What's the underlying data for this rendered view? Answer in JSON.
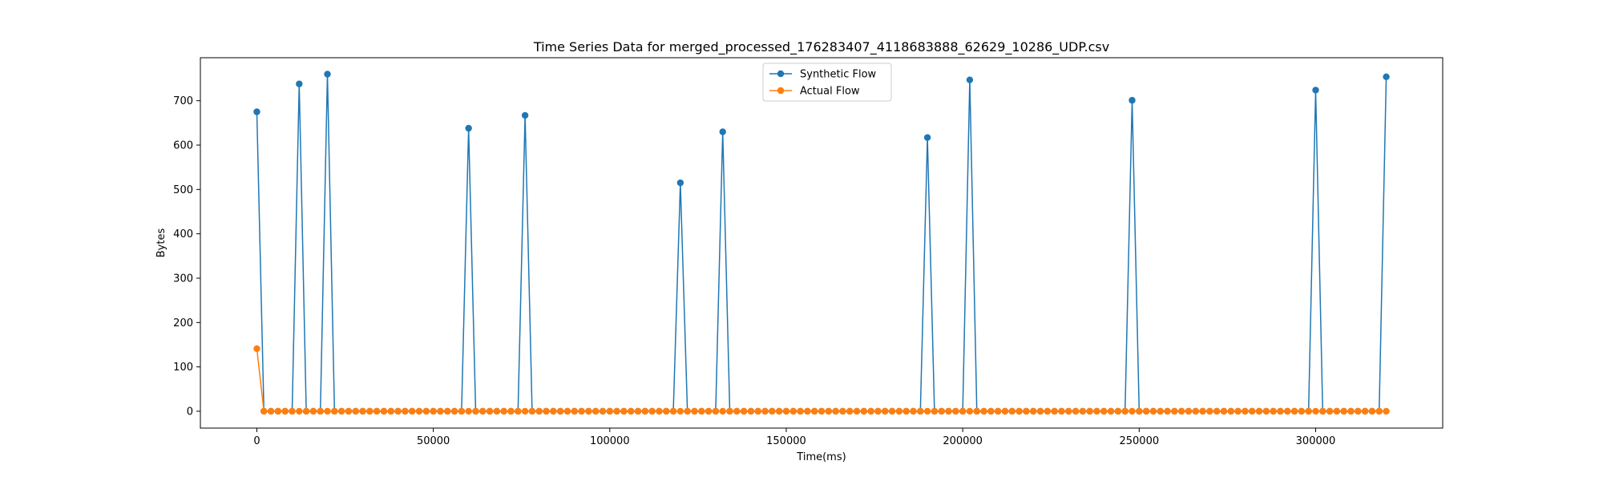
{
  "chart_data": {
    "type": "line",
    "title": "Time Series Data for merged_processed_176283407_4118683888_62629_10286_UDP.csv",
    "xlabel": "Time(ms)",
    "ylabel": "Bytes",
    "xlim": [
      -16000,
      336000
    ],
    "ylim": [
      -38,
      797
    ],
    "xticks": [
      0,
      50000,
      100000,
      150000,
      200000,
      250000,
      300000
    ],
    "yticks": [
      0,
      100,
      200,
      300,
      400,
      500,
      600,
      700
    ],
    "grid": false,
    "legend_position": "top-center",
    "x_step": 2000,
    "x_end": 320000,
    "series": [
      {
        "name": "Synthetic Flow",
        "color": "#1f77b4",
        "peaks": [
          {
            "x": 0,
            "y": 675
          },
          {
            "x": 12000,
            "y": 738
          },
          {
            "x": 20000,
            "y": 760
          },
          {
            "x": 60000,
            "y": 638
          },
          {
            "x": 76000,
            "y": 667
          },
          {
            "x": 120000,
            "y": 515
          },
          {
            "x": 132000,
            "y": 630
          },
          {
            "x": 190000,
            "y": 617
          },
          {
            "x": 202000,
            "y": 747
          },
          {
            "x": 248000,
            "y": 701
          },
          {
            "x": 300000,
            "y": 724
          },
          {
            "x": 320000,
            "y": 754
          }
        ],
        "baseline": 0
      },
      {
        "name": "Actual Flow",
        "color": "#ff7f0e",
        "peaks": [
          {
            "x": 0,
            "y": 141
          }
        ],
        "baseline": 0
      }
    ]
  }
}
